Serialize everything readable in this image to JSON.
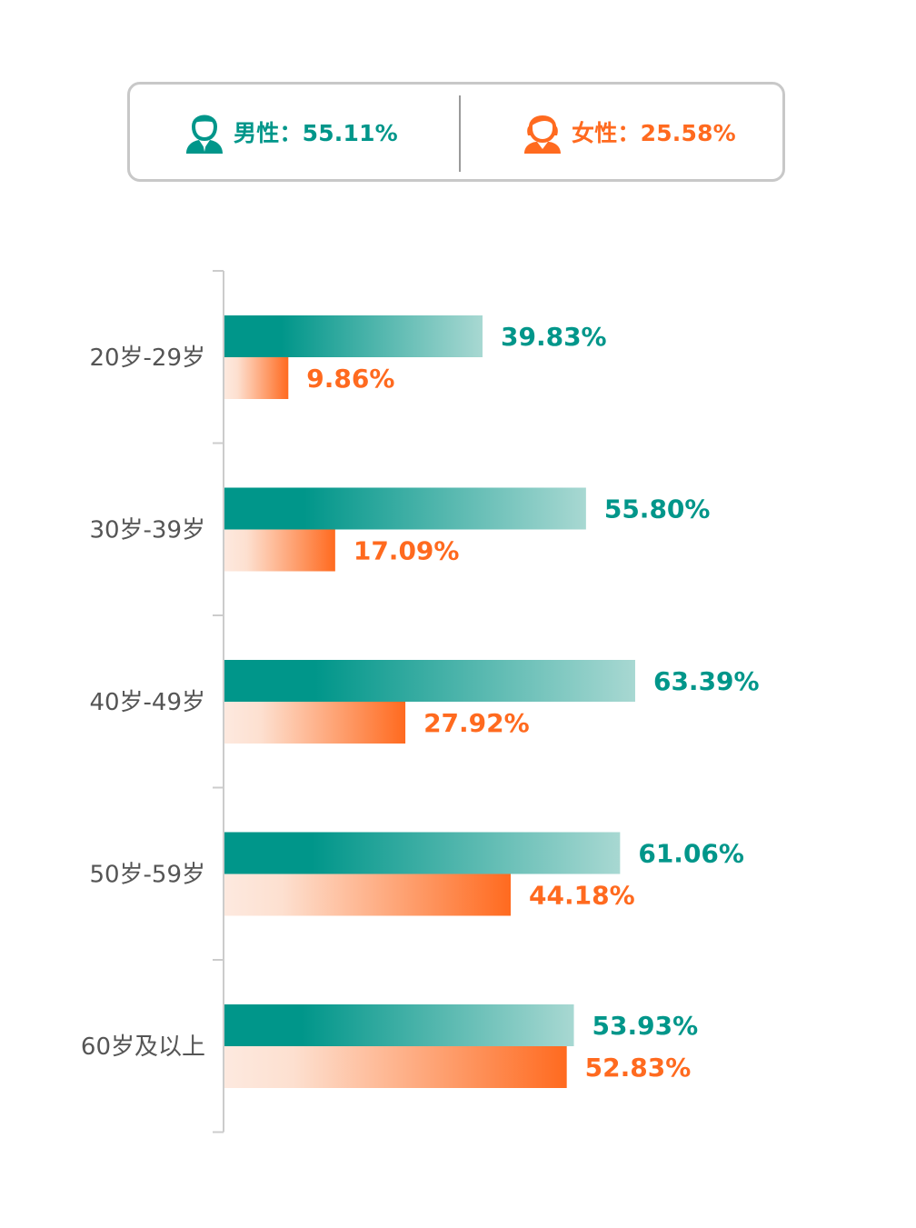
{
  "legend": {
    "male_label": "男性：55.11%",
    "female_label": "女性：25.58%"
  },
  "colors": {
    "male": "#00968a",
    "female": "#ff6a1f",
    "axis": "#cccccc",
    "category_text": "#555555"
  },
  "chart_data": {
    "type": "bar",
    "orientation": "horizontal",
    "categories": [
      "20岁-29岁",
      "30岁-39岁",
      "40岁-49岁",
      "50岁-59岁",
      "60岁及以上"
    ],
    "series": [
      {
        "name": "男性",
        "values": [
          39.83,
          55.8,
          63.39,
          61.06,
          53.93
        ],
        "labels": [
          "39.83%",
          "55.80%",
          "63.39%",
          "61.06%",
          "53.93%"
        ]
      },
      {
        "name": "女性",
        "values": [
          9.86,
          17.09,
          27.92,
          44.18,
          52.83
        ],
        "labels": [
          "9.86%",
          "17.09%",
          "27.92%",
          "44.18%",
          "52.83%"
        ]
      }
    ],
    "xlim": [
      0,
      100
    ],
    "grid": false,
    "legend_position": "top"
  }
}
